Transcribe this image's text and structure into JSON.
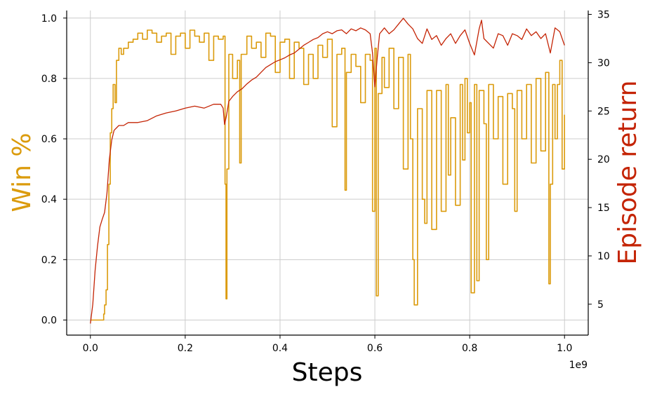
{
  "chart_data": {
    "type": "line",
    "xlabel": "Steps",
    "x_offset_label": "1e9",
    "xlim": [
      -0.05,
      1.05
    ],
    "x_ticks": [
      0.0,
      0.2,
      0.4,
      0.6,
      0.8,
      1.0
    ],
    "x_tick_labels": [
      "0.0",
      "0.2",
      "0.4",
      "0.6",
      "0.8",
      "1.0"
    ],
    "y_left_label": "Win %",
    "y_left_lim": [
      -0.05,
      1.025
    ],
    "y_left_ticks": [
      0.0,
      0.2,
      0.4,
      0.6,
      0.8,
      1.0
    ],
    "y_left_tick_labels": [
      "0.0",
      "0.2",
      "0.4",
      "0.6",
      "0.8",
      "1.0"
    ],
    "y_right_label": "Episode return",
    "y_right_lim": [
      1.8,
      35.4
    ],
    "y_right_ticks": [
      5,
      10,
      15,
      20,
      25,
      30,
      35
    ],
    "y_right_tick_labels": [
      "5",
      "10",
      "15",
      "20",
      "25",
      "30",
      "35"
    ],
    "grid": true,
    "colors": {
      "win": "#DB9B0C",
      "return": "#C42405",
      "grid": "#CCCCCC"
    },
    "series": [
      {
        "axis": "left",
        "color": "#DB9B0C",
        "points": [
          [
            0.0,
            0.0
          ],
          [
            0.015,
            0.0
          ],
          [
            0.02,
            0.0
          ],
          [
            0.025,
            0.0
          ],
          [
            0.028,
            0.02
          ],
          [
            0.03,
            0.05
          ],
          [
            0.033,
            0.1
          ],
          [
            0.036,
            0.25
          ],
          [
            0.039,
            0.45
          ],
          [
            0.042,
            0.62
          ],
          [
            0.045,
            0.7
          ],
          [
            0.048,
            0.78
          ],
          [
            0.052,
            0.72
          ],
          [
            0.055,
            0.86
          ],
          [
            0.06,
            0.9
          ],
          [
            0.065,
            0.88
          ],
          [
            0.07,
            0.9
          ],
          [
            0.08,
            0.92
          ],
          [
            0.09,
            0.93
          ],
          [
            0.1,
            0.95
          ],
          [
            0.11,
            0.93
          ],
          [
            0.12,
            0.96
          ],
          [
            0.13,
            0.95
          ],
          [
            0.14,
            0.92
          ],
          [
            0.15,
            0.94
          ],
          [
            0.16,
            0.95
          ],
          [
            0.17,
            0.88
          ],
          [
            0.18,
            0.94
          ],
          [
            0.19,
            0.95
          ],
          [
            0.2,
            0.9
          ],
          [
            0.21,
            0.96
          ],
          [
            0.22,
            0.94
          ],
          [
            0.23,
            0.92
          ],
          [
            0.24,
            0.95
          ],
          [
            0.25,
            0.86
          ],
          [
            0.26,
            0.94
          ],
          [
            0.27,
            0.93
          ],
          [
            0.28,
            0.94
          ],
          [
            0.284,
            0.45
          ],
          [
            0.286,
            0.07
          ],
          [
            0.288,
            0.5
          ],
          [
            0.292,
            0.88
          ],
          [
            0.3,
            0.8
          ],
          [
            0.31,
            0.86
          ],
          [
            0.315,
            0.52
          ],
          [
            0.318,
            0.88
          ],
          [
            0.33,
            0.94
          ],
          [
            0.34,
            0.9
          ],
          [
            0.35,
            0.92
          ],
          [
            0.36,
            0.87
          ],
          [
            0.37,
            0.95
          ],
          [
            0.38,
            0.94
          ],
          [
            0.39,
            0.82
          ],
          [
            0.4,
            0.92
          ],
          [
            0.41,
            0.93
          ],
          [
            0.42,
            0.8
          ],
          [
            0.43,
            0.92
          ],
          [
            0.44,
            0.9
          ],
          [
            0.45,
            0.78
          ],
          [
            0.46,
            0.88
          ],
          [
            0.47,
            0.8
          ],
          [
            0.48,
            0.91
          ],
          [
            0.49,
            0.87
          ],
          [
            0.5,
            0.93
          ],
          [
            0.51,
            0.64
          ],
          [
            0.52,
            0.88
          ],
          [
            0.53,
            0.9
          ],
          [
            0.537,
            0.43
          ],
          [
            0.54,
            0.82
          ],
          [
            0.55,
            0.88
          ],
          [
            0.56,
            0.84
          ],
          [
            0.57,
            0.72
          ],
          [
            0.58,
            0.88
          ],
          [
            0.59,
            0.86
          ],
          [
            0.595,
            0.36
          ],
          [
            0.6,
            0.9
          ],
          [
            0.603,
            0.08
          ],
          [
            0.607,
            0.75
          ],
          [
            0.615,
            0.87
          ],
          [
            0.62,
            0.77
          ],
          [
            0.63,
            0.9
          ],
          [
            0.64,
            0.7
          ],
          [
            0.65,
            0.87
          ],
          [
            0.66,
            0.5
          ],
          [
            0.67,
            0.88
          ],
          [
            0.675,
            0.6
          ],
          [
            0.68,
            0.2
          ],
          [
            0.683,
            0.05
          ],
          [
            0.69,
            0.7
          ],
          [
            0.7,
            0.4
          ],
          [
            0.705,
            0.32
          ],
          [
            0.71,
            0.76
          ],
          [
            0.72,
            0.3
          ],
          [
            0.73,
            0.76
          ],
          [
            0.74,
            0.36
          ],
          [
            0.75,
            0.78
          ],
          [
            0.755,
            0.48
          ],
          [
            0.76,
            0.67
          ],
          [
            0.77,
            0.38
          ],
          [
            0.78,
            0.78
          ],
          [
            0.785,
            0.53
          ],
          [
            0.79,
            0.8
          ],
          [
            0.795,
            0.62
          ],
          [
            0.8,
            0.72
          ],
          [
            0.803,
            0.09
          ],
          [
            0.81,
            0.78
          ],
          [
            0.815,
            0.13
          ],
          [
            0.82,
            0.76
          ],
          [
            0.83,
            0.65
          ],
          [
            0.835,
            0.2
          ],
          [
            0.84,
            0.78
          ],
          [
            0.85,
            0.6
          ],
          [
            0.86,
            0.74
          ],
          [
            0.87,
            0.45
          ],
          [
            0.88,
            0.75
          ],
          [
            0.89,
            0.7
          ],
          [
            0.895,
            0.36
          ],
          [
            0.9,
            0.76
          ],
          [
            0.91,
            0.6
          ],
          [
            0.92,
            0.78
          ],
          [
            0.93,
            0.52
          ],
          [
            0.94,
            0.8
          ],
          [
            0.95,
            0.56
          ],
          [
            0.96,
            0.82
          ],
          [
            0.967,
            0.12
          ],
          [
            0.97,
            0.45
          ],
          [
            0.975,
            0.78
          ],
          [
            0.98,
            0.6
          ],
          [
            0.985,
            0.78
          ],
          [
            0.99,
            0.86
          ],
          [
            0.995,
            0.5
          ],
          [
            1.0,
            0.68
          ]
        ]
      },
      {
        "axis": "right",
        "color": "#C42405",
        "points": [
          [
            0.0,
            3.0
          ],
          [
            0.005,
            5.0
          ],
          [
            0.01,
            8.5
          ],
          [
            0.015,
            11.0
          ],
          [
            0.02,
            13.0
          ],
          [
            0.025,
            13.8
          ],
          [
            0.03,
            14.5
          ],
          [
            0.035,
            16.5
          ],
          [
            0.04,
            20.0
          ],
          [
            0.045,
            22.0
          ],
          [
            0.05,
            23.0
          ],
          [
            0.06,
            23.5
          ],
          [
            0.07,
            23.5
          ],
          [
            0.08,
            23.8
          ],
          [
            0.1,
            23.8
          ],
          [
            0.12,
            24.0
          ],
          [
            0.14,
            24.5
          ],
          [
            0.16,
            24.8
          ],
          [
            0.18,
            25.0
          ],
          [
            0.2,
            25.3
          ],
          [
            0.22,
            25.5
          ],
          [
            0.24,
            25.3
          ],
          [
            0.26,
            25.7
          ],
          [
            0.275,
            25.7
          ],
          [
            0.28,
            25.3
          ],
          [
            0.283,
            23.6
          ],
          [
            0.287,
            24.5
          ],
          [
            0.292,
            26.0
          ],
          [
            0.3,
            26.5
          ],
          [
            0.31,
            27.0
          ],
          [
            0.32,
            27.3
          ],
          [
            0.33,
            27.8
          ],
          [
            0.34,
            28.2
          ],
          [
            0.35,
            28.5
          ],
          [
            0.36,
            29.0
          ],
          [
            0.37,
            29.5
          ],
          [
            0.38,
            29.8
          ],
          [
            0.39,
            30.1
          ],
          [
            0.4,
            30.3
          ],
          [
            0.41,
            30.5
          ],
          [
            0.42,
            30.8
          ],
          [
            0.43,
            31.0
          ],
          [
            0.44,
            31.4
          ],
          [
            0.45,
            31.8
          ],
          [
            0.46,
            32.1
          ],
          [
            0.47,
            32.4
          ],
          [
            0.48,
            32.6
          ],
          [
            0.49,
            33.0
          ],
          [
            0.5,
            33.2
          ],
          [
            0.51,
            33.0
          ],
          [
            0.52,
            33.3
          ],
          [
            0.53,
            33.4
          ],
          [
            0.54,
            33.0
          ],
          [
            0.55,
            33.5
          ],
          [
            0.56,
            33.3
          ],
          [
            0.57,
            33.6
          ],
          [
            0.58,
            33.4
          ],
          [
            0.59,
            33.0
          ],
          [
            0.595,
            31.0
          ],
          [
            0.6,
            27.5
          ],
          [
            0.605,
            30.5
          ],
          [
            0.61,
            33.0
          ],
          [
            0.62,
            33.6
          ],
          [
            0.63,
            33.0
          ],
          [
            0.64,
            33.4
          ],
          [
            0.65,
            34.0
          ],
          [
            0.66,
            34.6
          ],
          [
            0.67,
            34.0
          ],
          [
            0.68,
            33.5
          ],
          [
            0.69,
            32.5
          ],
          [
            0.7,
            32.0
          ],
          [
            0.71,
            33.5
          ],
          [
            0.72,
            32.4
          ],
          [
            0.73,
            32.8
          ],
          [
            0.74,
            31.8
          ],
          [
            0.75,
            32.5
          ],
          [
            0.76,
            33.0
          ],
          [
            0.77,
            32.0
          ],
          [
            0.78,
            32.8
          ],
          [
            0.79,
            33.4
          ],
          [
            0.8,
            32.0
          ],
          [
            0.81,
            30.8
          ],
          [
            0.82,
            33.5
          ],
          [
            0.825,
            34.4
          ],
          [
            0.83,
            32.5
          ],
          [
            0.84,
            32.0
          ],
          [
            0.85,
            31.5
          ],
          [
            0.86,
            33.0
          ],
          [
            0.87,
            32.8
          ],
          [
            0.88,
            31.8
          ],
          [
            0.89,
            33.0
          ],
          [
            0.9,
            32.8
          ],
          [
            0.91,
            32.4
          ],
          [
            0.92,
            33.5
          ],
          [
            0.93,
            32.8
          ],
          [
            0.94,
            33.2
          ],
          [
            0.95,
            32.5
          ],
          [
            0.96,
            33.0
          ],
          [
            0.97,
            31.0
          ],
          [
            0.98,
            33.6
          ],
          [
            0.99,
            33.2
          ],
          [
            1.0,
            31.8
          ]
        ]
      }
    ]
  }
}
